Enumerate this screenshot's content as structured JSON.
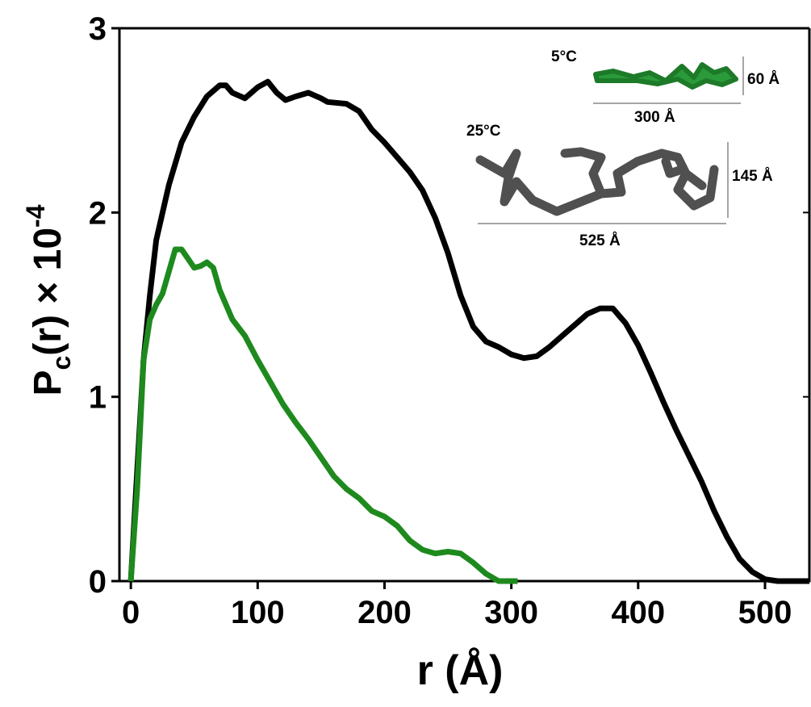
{
  "chart_data": {
    "type": "line",
    "x_label": "r (Å)",
    "y_label": [
      "P",
      "c",
      "(r) × 10",
      "-4"
    ],
    "xlim": [
      -9,
      535
    ],
    "ylim": [
      0,
      3
    ],
    "xticks": [
      0,
      100,
      200,
      300,
      400,
      500
    ],
    "yticks": [
      0,
      1,
      2,
      3
    ],
    "annotations": [
      "5°C",
      "60 Å",
      "300 Å",
      "25°C",
      "145 Å",
      "525 Å"
    ],
    "series": [
      {
        "color": "#000000",
        "x": [
          0,
          5,
          10,
          15,
          20,
          30,
          40,
          50,
          60,
          70,
          75,
          80,
          90,
          100,
          108,
          115,
          122,
          130,
          140,
          150,
          155,
          170,
          180,
          190,
          200,
          210,
          220,
          230,
          240,
          250,
          260,
          270,
          280,
          290,
          300,
          310,
          320,
          330,
          340,
          350,
          360,
          370,
          380,
          390,
          400,
          410,
          420,
          430,
          440,
          450,
          460,
          470,
          480,
          490,
          500,
          510,
          520,
          535
        ],
        "values": [
          0,
          0.6,
          1.2,
          1.55,
          1.85,
          2.15,
          2.38,
          2.52,
          2.63,
          2.69,
          2.69,
          2.65,
          2.62,
          2.68,
          2.71,
          2.65,
          2.61,
          2.63,
          2.65,
          2.62,
          2.6,
          2.59,
          2.55,
          2.45,
          2.38,
          2.3,
          2.22,
          2.12,
          1.97,
          1.78,
          1.55,
          1.38,
          1.3,
          1.27,
          1.23,
          1.21,
          1.22,
          1.27,
          1.33,
          1.39,
          1.45,
          1.48,
          1.48,
          1.4,
          1.28,
          1.13,
          0.97,
          0.82,
          0.68,
          0.54,
          0.38,
          0.24,
          0.12,
          0.05,
          0.01,
          0,
          0,
          0
        ]
      },
      {
        "color": "#1e8a1e",
        "x": [
          0,
          5,
          10,
          15,
          20,
          25,
          30,
          35,
          40,
          45,
          50,
          55,
          60,
          65,
          70,
          80,
          90,
          100,
          110,
          120,
          130,
          140,
          150,
          160,
          170,
          180,
          190,
          200,
          210,
          220,
          230,
          240,
          250,
          260,
          270,
          280,
          290,
          305
        ],
        "values": [
          0,
          0.5,
          1.2,
          1.42,
          1.5,
          1.56,
          1.68,
          1.8,
          1.8,
          1.75,
          1.7,
          1.71,
          1.73,
          1.7,
          1.58,
          1.42,
          1.33,
          1.2,
          1.08,
          0.96,
          0.86,
          0.77,
          0.67,
          0.57,
          0.5,
          0.45,
          0.38,
          0.35,
          0.3,
          0.22,
          0.17,
          0.15,
          0.16,
          0.15,
          0.1,
          0.04,
          0,
          0
        ]
      }
    ]
  }
}
